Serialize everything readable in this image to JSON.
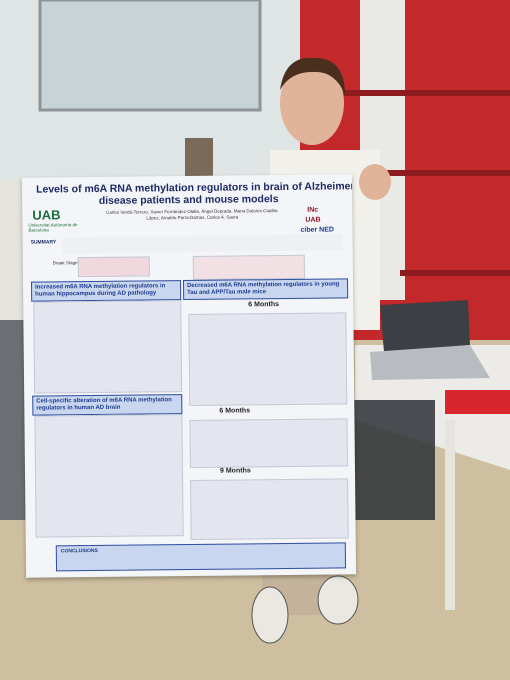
{
  "poster": {
    "title_lines": [
      "Levels of m6A RNA methylation regulators in brain of Alzheimer's",
      "disease patients and mouse models"
    ],
    "logo": "UAB",
    "university": "Universitat Autònoma de Barcelona",
    "authors": "Carles Verdú-Torrero, Xavier Fernández-Olalla, Àngel Deprada, Maria Dolores Capilla-López, Arnaldo Parra-Damas, Carlos A. Saura",
    "summary": "SUMMARY",
    "braak": "Braak Stages",
    "logos": [
      "INc",
      "UAB",
      "ciber NED"
    ],
    "sections": [
      "Increased m6A RNA methylation regulators in human hippocampus during AD pathology",
      "Decreased m6A RNA methylation regulators in young Tau and APP/Tau male mice",
      "Cell-specific alteration of m6A RNA methylation regulators in human AD brain"
    ],
    "subheadings": [
      "6 Months",
      "6 Months",
      "9 Months"
    ],
    "conclusions": "CONCLUSIONS"
  }
}
